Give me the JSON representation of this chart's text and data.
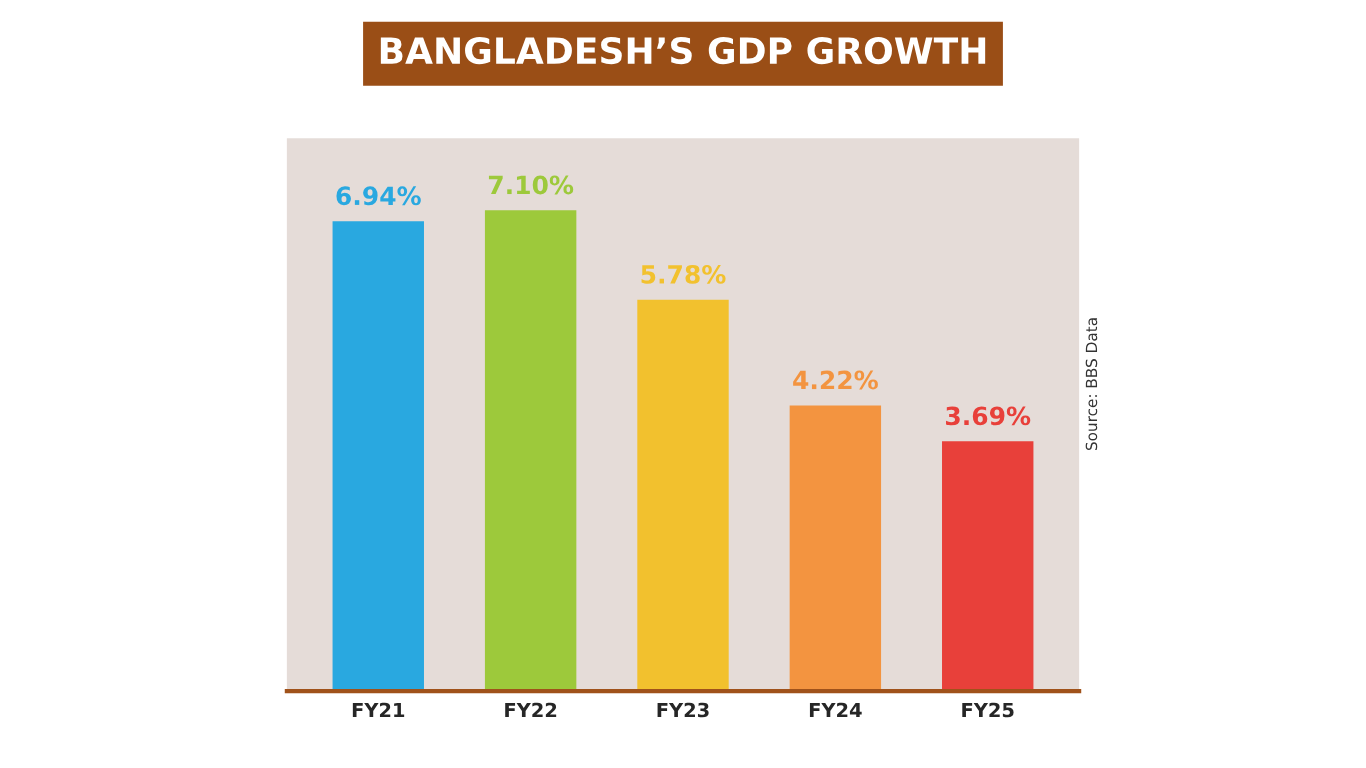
{
  "chart_data": {
    "type": "bar",
    "title": "BANGLADESH’S GDP GROWTH",
    "categories": [
      "FY21",
      "FY22",
      "FY23",
      "FY24",
      "FY25"
    ],
    "values": [
      6.94,
      7.1,
      5.78,
      4.22,
      3.69
    ],
    "colors": [
      "#29a8e0",
      "#9dc93b",
      "#f2c12e",
      "#f39440",
      "#e8403a"
    ],
    "value_labels": [
      "6.94%",
      "7.10%",
      "5.78%",
      "4.22%",
      "3.69%"
    ],
    "annotations": [
      "Source: BBS Data"
    ]
  }
}
